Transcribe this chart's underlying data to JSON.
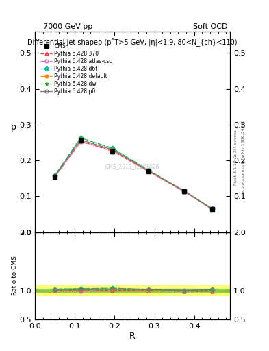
{
  "title": "Differential jet shapeρ (pˆT>5 GeV, |η|<1.9, 80<N_{ch}<110)",
  "top_left_label": "7000 GeV pp",
  "top_right_label": "Soft QCD",
  "right_label_main": "Rivet 3.1.10, ≥ 2M events",
  "right_label_sub": "mcplots.cern.ch [arXiv:1306.3436]",
  "watermark": "CMS_2013_I1261026",
  "xlabel": "R",
  "ylabel_main": "ρ",
  "ylabel_ratio": "Ratio to CMS",
  "x_data": [
    0.05,
    0.115,
    0.195,
    0.285,
    0.375,
    0.445
  ],
  "cms_y": [
    0.155,
    0.255,
    0.225,
    0.17,
    0.115,
    0.065
  ],
  "cms_yerr": [
    0.005,
    0.005,
    0.005,
    0.005,
    0.005,
    0.003
  ],
  "series": [
    {
      "label": "Pythia 6.428 370",
      "color": "#ee3333",
      "linestyle": "--",
      "marker": "^",
      "mfc": "none",
      "y": [
        0.155,
        0.254,
        0.226,
        0.17,
        0.113,
        0.064
      ],
      "ratio": [
        1.0,
        0.996,
        1.004,
        1.0,
        0.983,
        0.985
      ]
    },
    {
      "label": "Pythia 6.428 atlas-csc",
      "color": "#ee66cc",
      "linestyle": "-.",
      "marker": "o",
      "mfc": "none",
      "y": [
        0.154,
        0.252,
        0.23,
        0.17,
        0.113,
        0.065
      ],
      "ratio": [
        0.994,
        0.988,
        1.022,
        1.0,
        0.983,
        1.0
      ]
    },
    {
      "label": "Pythia 6.428 d6t",
      "color": "#00bbaa",
      "linestyle": "-.",
      "marker": "D",
      "mfc": "#00bbaa",
      "y": [
        0.158,
        0.263,
        0.234,
        0.173,
        0.115,
        0.066
      ],
      "ratio": [
        1.019,
        1.031,
        1.04,
        1.018,
        1.0,
        1.015
      ]
    },
    {
      "label": "Pythia 6.428 default",
      "color": "#ff8800",
      "linestyle": "-.",
      "marker": "o",
      "mfc": "#ff8800",
      "y": [
        0.156,
        0.257,
        0.23,
        0.171,
        0.114,
        0.065
      ],
      "ratio": [
        1.006,
        1.008,
        1.022,
        1.006,
        0.991,
        1.0
      ]
    },
    {
      "label": "Pythia 6.428 dw",
      "color": "#33aa33",
      "linestyle": "--",
      "marker": "*",
      "mfc": "#33aa33",
      "y": [
        0.159,
        0.263,
        0.234,
        0.173,
        0.115,
        0.065
      ],
      "ratio": [
        1.026,
        1.031,
        1.04,
        1.018,
        1.0,
        1.0
      ]
    },
    {
      "label": "Pythia 6.428 p0",
      "color": "#777777",
      "linestyle": "-",
      "marker": "o",
      "mfc": "none",
      "y": [
        0.156,
        0.258,
        0.23,
        0.172,
        0.115,
        0.066
      ],
      "ratio": [
        1.006,
        1.012,
        1.022,
        1.012,
        1.0,
        1.015
      ]
    }
  ],
  "ylim_main": [
    0.0,
    0.56
  ],
  "ylim_ratio": [
    0.5,
    2.0
  ],
  "yticks_main": [
    0.0,
    0.1,
    0.2,
    0.3,
    0.4,
    0.5
  ],
  "yticks_ratio": [
    0.5,
    1.0,
    2.0
  ],
  "xlim": [
    0.0,
    0.49
  ],
  "xticks": [
    0.0,
    0.1,
    0.2,
    0.3,
    0.4
  ],
  "green_band_inner": 0.025,
  "green_band_outer": 0.085,
  "background_color": "#ffffff"
}
